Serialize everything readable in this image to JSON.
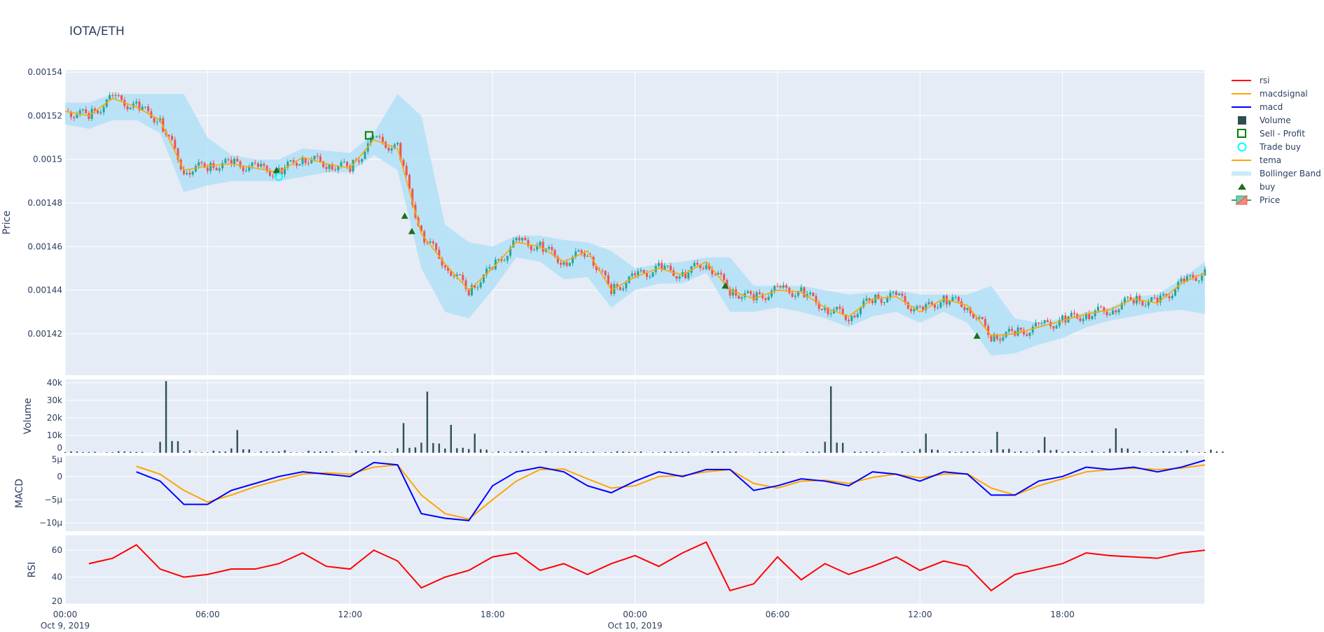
{
  "chart_data": {
    "type": "candlestick",
    "title": "IOTA/ETH",
    "x_range": [
      "Oct 9, 2019 00:00",
      "Oct 10, 2019 24:00"
    ],
    "x_ticks": [
      [
        "00:00",
        "Oct 9, 2019"
      ],
      [
        "06:00",
        ""
      ],
      [
        "12:00",
        ""
      ],
      [
        "18:00",
        ""
      ],
      [
        "00:00",
        "Oct 10, 2019"
      ],
      [
        "06:00",
        ""
      ],
      [
        "12:00",
        ""
      ],
      [
        "18:00",
        ""
      ]
    ],
    "x_hours_interval": 1,
    "panels": {
      "price": {
        "ylabel": "Price",
        "ylim": [
          0.001401,
          0.001541
        ],
        "ticks": [
          [
            0.00142,
            "0.00142"
          ],
          [
            0.00144,
            "0.00144"
          ],
          [
            0.00146,
            "0.00146"
          ],
          [
            0.00148,
            "0.00148"
          ],
          [
            0.0015,
            "0.0015"
          ],
          [
            0.00152,
            "0.00152"
          ],
          [
            0.00154,
            "0.00154"
          ]
        ]
      },
      "volume": {
        "ylabel": "Volume",
        "ylim": [
          0,
          42000
        ],
        "ticks": [
          [
            0,
            "0"
          ],
          [
            10000,
            "10k"
          ],
          [
            20000,
            "20k"
          ],
          [
            30000,
            "30k"
          ],
          [
            40000,
            "40k"
          ]
        ]
      },
      "macd": {
        "ylabel": "MACD",
        "ylim": [
          -11.8,
          4.5
        ],
        "ticks": [
          [
            -10,
            "−10µ"
          ],
          [
            -5,
            "−5µ"
          ],
          [
            0,
            "0"
          ],
          [
            5,
            "5µ"
          ]
        ]
      },
      "rsi": {
        "ylabel": "RSI",
        "ylim": [
          20,
          71
        ],
        "ticks": [
          [
            20,
            "20"
          ],
          [
            40,
            "40"
          ],
          [
            60,
            "60"
          ]
        ]
      }
    },
    "close": [
      0.001522,
      0.00152,
      0.001528,
      0.001524,
      0.001518,
      0.001495,
      0.001497,
      0.001498,
      0.001496,
      0.001494,
      0.001501,
      0.001498,
      0.001496,
      0.001509,
      0.001505,
      0.001466,
      0.001452,
      0.00144,
      0.00145,
      0.001462,
      0.00146,
      0.001453,
      0.001458,
      0.00144,
      0.001446,
      0.00145,
      0.001447,
      0.001453,
      0.00144,
      0.001436,
      0.00144,
      0.001439,
      0.001432,
      0.001428,
      0.001436,
      0.001437,
      0.00143,
      0.001436,
      0.001433,
      0.001419,
      0.00142,
      0.001423,
      0.001426,
      0.001429,
      0.001431,
      0.001436,
      0.001434,
      0.001443,
      0.001448
    ],
    "bb_upper": [
      0.001526,
      0.001526,
      0.00153,
      0.00153,
      0.00153,
      0.00153,
      0.00151,
      0.001502,
      0.0015,
      0.0015,
      0.001505,
      0.001504,
      0.001503,
      0.001512,
      0.00153,
      0.00152,
      0.00147,
      0.001462,
      0.00146,
      0.001465,
      0.001465,
      0.001463,
      0.001462,
      0.001458,
      0.00145,
      0.001452,
      0.001453,
      0.001455,
      0.001455,
      0.001442,
      0.001442,
      0.001442,
      0.00144,
      0.001438,
      0.001439,
      0.00144,
      0.001438,
      0.001438,
      0.001438,
      0.001442,
      0.001427,
      0.001425,
      0.001427,
      0.00143,
      0.001432,
      0.001437,
      0.001438,
      0.001445,
      0.001453
    ],
    "bb_lower": [
      0.001516,
      0.001514,
      0.001518,
      0.001518,
      0.001512,
      0.001485,
      0.001488,
      0.00149,
      0.00149,
      0.00149,
      0.001492,
      0.001494,
      0.001494,
      0.001502,
      0.001495,
      0.00145,
      0.00143,
      0.001427,
      0.00144,
      0.001455,
      0.001453,
      0.001445,
      0.001446,
      0.001432,
      0.00144,
      0.001443,
      0.001443,
      0.001448,
      0.00143,
      0.00143,
      0.001432,
      0.00143,
      0.001427,
      0.001423,
      0.001428,
      0.00143,
      0.001425,
      0.00143,
      0.001425,
      0.00141,
      0.001411,
      0.001415,
      0.001418,
      0.001423,
      0.001426,
      0.001428,
      0.00143,
      0.001431,
      0.001429
    ],
    "volume": [
      800,
      600,
      900,
      500,
      41000,
      1500,
      1200,
      13000,
      900,
      1500,
      1200,
      900,
      1500,
      1300,
      17000,
      35000,
      16000,
      11000,
      900,
      1200,
      1000,
      800,
      700,
      900,
      800,
      700,
      600,
      900,
      700,
      500,
      800,
      600,
      38000,
      700,
      600,
      800,
      11000,
      700,
      800,
      12000,
      900,
      9000,
      800,
      1200,
      14000,
      900,
      1000,
      1500,
      1800
    ],
    "volume_color": "#2f4f4f",
    "macd": [
      null,
      null,
      null,
      1,
      -1,
      -6,
      -6,
      -3,
      -1.5,
      0,
      1,
      0.5,
      0,
      3,
      2.5,
      -8,
      -9,
      -9.5,
      -2,
      1,
      2,
      1,
      -2,
      -3.5,
      -1,
      1,
      0,
      1.5,
      1.5,
      -3,
      -2,
      -0.5,
      -1,
      -2,
      1,
      0.5,
      -1,
      1,
      0.5,
      -4,
      -4,
      -1,
      0,
      2,
      1.5,
      2,
      1,
      2,
      3.5
    ],
    "macdsignal": [
      null,
      null,
      null,
      2.2,
      0.5,
      -3,
      -5.5,
      -4,
      -2.2,
      -0.8,
      0.5,
      0.8,
      0.5,
      2,
      2.5,
      -4,
      -8,
      -9.2,
      -5,
      -1,
      1.5,
      1.6,
      -0.5,
      -2.5,
      -2,
      0,
      0.2,
      1,
      1.5,
      -1.5,
      -2.5,
      -1,
      -0.8,
      -1.5,
      -0.2,
      0.5,
      -0.3,
      0.5,
      0.6,
      -2.5,
      -4,
      -2,
      -0.5,
      1,
      1.5,
      1.8,
      1.5,
      1.8,
      2.5
    ],
    "rsi": [
      null,
      50,
      54,
      64,
      46,
      40,
      42,
      46,
      46,
      50,
      58,
      48,
      46,
      60,
      52,
      32,
      40,
      45,
      55,
      58,
      45,
      50,
      42,
      50,
      56,
      48,
      58,
      66,
      30,
      35,
      55,
      38,
      50,
      42,
      48,
      55,
      45,
      52,
      48,
      30,
      42,
      46,
      50,
      58,
      56,
      55,
      54,
      58,
      60
    ],
    "buy": [
      [
        8.9,
        0.001495
      ],
      [
        14.3,
        0.001474
      ],
      [
        14.6,
        0.001467
      ],
      [
        27.8,
        0.001442
      ],
      [
        38.4,
        0.001419
      ]
    ],
    "trade_buy": [
      [
        9.0,
        0.001492
      ]
    ],
    "sell_profit": [
      [
        12.8,
        0.001511
      ]
    ],
    "colors": {
      "increasing": "#26a69a",
      "decreasing": "#ef5350",
      "tema": "#ffa500",
      "bb": "#b3e0f7",
      "macd": "#0000ff",
      "macdsignal": "#ffa500",
      "rsi": "#ff0000",
      "buy": "#1e6e1e",
      "sell": "#008000",
      "trade_buy": "#00ffff",
      "plot_bg": "#e5ecf6"
    },
    "legend": [
      "rsi",
      "macdsignal",
      "macd",
      "Volume",
      "Sell - Profit",
      "Trade buy",
      "tema",
      "Bollinger Band",
      "buy",
      "Price"
    ]
  }
}
